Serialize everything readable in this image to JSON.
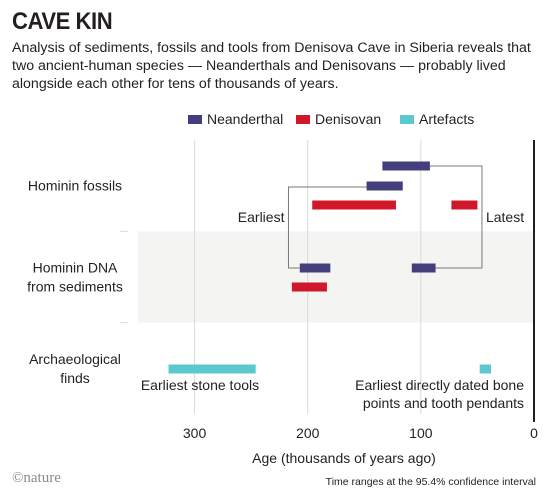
{
  "header": {
    "title": "CAVE KIN",
    "subtitle": "Analysis of sediments, fossils and tools from Denisova Cave in Siberia reveals that two ancient-human species — Neanderthals and Denisovans — probably lived alongside each other for tens of thousands of years."
  },
  "footer": {
    "logo": "©nature",
    "note": "Time ranges at the 95.4% confidence interval"
  },
  "colors": {
    "neanderthal": "#433f7d",
    "denisovan": "#d1182b",
    "artefacts": "#5ac8cc",
    "band": "#f4f4f2",
    "grid": "#d9d9d9",
    "bracket": "#7a7a7a",
    "axis": "#231f20"
  },
  "chart_data": {
    "type": "range-bar",
    "xlabel": "Age (thousands of years ago)",
    "xlim": [
      350,
      0
    ],
    "x_reversed": true,
    "xticks": [
      300,
      200,
      100,
      0
    ],
    "grid": "vertical",
    "legend_placement": "top-right",
    "legend": [
      {
        "name": "Neanderthal",
        "color_key": "neanderthal"
      },
      {
        "name": "Denisovan",
        "color_key": "denisovan"
      },
      {
        "name": "Artefacts",
        "color_key": "artefacts"
      }
    ],
    "rows": [
      {
        "label": [
          "Hominin fossils"
        ]
      },
      {
        "label": [
          "Hominin DNA",
          "from sediments"
        ]
      },
      {
        "label": [
          "Archaeological",
          "finds"
        ]
      }
    ],
    "bars": [
      {
        "row": 0,
        "series": "neanderthal",
        "start": 134,
        "end": 92,
        "slot": 0
      },
      {
        "row": 0,
        "series": "neanderthal",
        "start": 148,
        "end": 116,
        "slot": 1
      },
      {
        "row": 0,
        "series": "denisovan",
        "start": 196,
        "end": 122,
        "slot": 2
      },
      {
        "row": 0,
        "series": "denisovan",
        "start": 73,
        "end": 50,
        "slot": 2
      },
      {
        "row": 1,
        "series": "neanderthal",
        "start": 207,
        "end": 180,
        "slot": 0
      },
      {
        "row": 1,
        "series": "neanderthal",
        "start": 108,
        "end": 87,
        "slot": 0
      },
      {
        "row": 1,
        "series": "denisovan",
        "start": 214,
        "end": 183,
        "slot": 1
      },
      {
        "row": 2,
        "series": "artefacts",
        "start": 323,
        "end": 246,
        "slot": 0
      },
      {
        "row": 2,
        "series": "artefacts",
        "start": 48,
        "end": 38,
        "slot": 0
      }
    ],
    "annotations": {
      "earliest": "Earliest",
      "latest": "Latest",
      "earliest_tools": "Earliest stone tools",
      "earliest_bone_1": "Earliest directly dated bone",
      "earliest_bone_2": "points and tooth pendants"
    },
    "brackets": {
      "earliest_x": 217,
      "latest_x": 46
    }
  }
}
